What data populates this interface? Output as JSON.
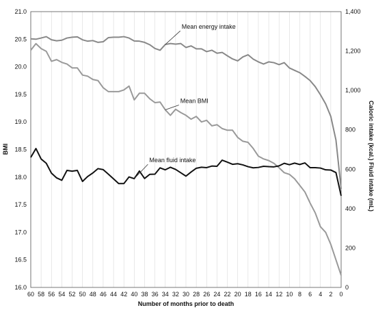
{
  "chart_data": {
    "type": "line",
    "xlabel": "Number of months prior to death",
    "ylabel_left": "BMI",
    "ylabel_right": "Caloric intake (kcal.) Fluid intake (mL)",
    "x_ticks": [
      60,
      58,
      56,
      54,
      52,
      50,
      48,
      46,
      44,
      42,
      40,
      38,
      36,
      34,
      32,
      30,
      28,
      26,
      24,
      22,
      20,
      18,
      16,
      14,
      12,
      10,
      8,
      6,
      4,
      2,
      0
    ],
    "x_range": [
      60,
      0
    ],
    "y_left_ticks": [
      "16.0",
      "16.5",
      "17.0",
      "17.5",
      "18.0",
      "18.5",
      "19.0",
      "19.5",
      "20.0",
      "20.5",
      "21.0"
    ],
    "y_left_range": [
      16.0,
      21.0
    ],
    "y_right_ticks": [
      "0",
      "200",
      "400",
      "600",
      "800",
      "1,000",
      "1,200",
      "1,400"
    ],
    "y_right_range": [
      0,
      1400
    ],
    "grid": "vertical",
    "series": [
      {
        "name": "Mean energy intake",
        "axis": "right",
        "color": "#888888",
        "x": [
          60,
          59,
          58,
          57,
          56,
          55,
          54,
          53,
          52,
          51,
          50,
          49,
          48,
          47,
          46,
          45,
          44,
          43,
          42,
          41,
          40,
          39,
          38,
          37,
          36,
          35,
          34,
          33,
          32,
          31,
          30,
          29,
          28,
          27,
          26,
          25,
          24,
          23,
          22,
          21,
          20,
          19,
          18,
          17,
          16,
          15,
          14,
          13,
          12,
          11,
          10,
          9,
          8,
          7,
          6,
          5,
          4,
          3,
          2,
          1,
          0
        ],
        "y": [
          1262,
          1260,
          1266,
          1273,
          1257,
          1252,
          1255,
          1266,
          1270,
          1272,
          1257,
          1250,
          1253,
          1244,
          1247,
          1268,
          1270,
          1270,
          1273,
          1266,
          1251,
          1250,
          1244,
          1232,
          1213,
          1204,
          1233,
          1238,
          1235,
          1238,
          1218,
          1226,
          1211,
          1211,
          1197,
          1204,
          1189,
          1193,
          1176,
          1160,
          1150,
          1170,
          1181,
          1159,
          1145,
          1134,
          1145,
          1141,
          1131,
          1141,
          1114,
          1102,
          1090,
          1071,
          1050,
          1019,
          978,
          932,
          868,
          748,
          500
        ]
      },
      {
        "name": "Mean BMI",
        "axis": "left",
        "color": "#999999",
        "x": [
          60,
          59,
          58,
          57,
          56,
          55,
          54,
          53,
          52,
          51,
          50,
          49,
          48,
          47,
          46,
          45,
          44,
          43,
          42,
          41,
          40,
          39,
          38,
          37,
          36,
          35,
          34,
          33,
          32,
          31,
          30,
          29,
          28,
          27,
          26,
          25,
          24,
          23,
          22,
          21,
          20,
          19,
          18,
          17,
          16,
          15,
          14,
          13,
          12,
          11,
          10,
          9,
          8,
          7,
          6,
          5,
          4,
          3,
          2,
          1,
          0
        ],
        "y": [
          20.3,
          20.42,
          20.33,
          20.28,
          20.1,
          20.13,
          20.08,
          20.05,
          19.98,
          19.98,
          19.85,
          19.83,
          19.77,
          19.75,
          19.62,
          19.55,
          19.55,
          19.55,
          19.58,
          19.65,
          19.4,
          19.52,
          19.52,
          19.42,
          19.35,
          19.36,
          19.22,
          19.12,
          19.23,
          19.17,
          19.12,
          19.05,
          19.1,
          19.0,
          19.03,
          18.93,
          18.95,
          18.88,
          18.85,
          18.85,
          18.72,
          18.65,
          18.63,
          18.52,
          18.38,
          18.33,
          18.3,
          18.25,
          18.17,
          18.08,
          18.05,
          17.97,
          17.85,
          17.73,
          17.53,
          17.35,
          17.1,
          17.0,
          16.78,
          16.5,
          16.22
        ]
      },
      {
        "name": "Mean fluid intake",
        "axis": "right",
        "color": "#111111",
        "x": [
          60,
          59,
          58,
          57,
          56,
          55,
          54,
          53,
          52,
          51,
          50,
          49,
          48,
          47,
          46,
          45,
          44,
          43,
          42,
          41,
          40,
          39,
          38,
          37,
          36,
          35,
          34,
          33,
          32,
          31,
          30,
          29,
          28,
          27,
          26,
          25,
          24,
          23,
          22,
          21,
          20,
          19,
          18,
          17,
          16,
          15,
          14,
          13,
          12,
          11,
          10,
          9,
          8,
          7,
          6,
          5,
          4,
          3,
          2,
          1,
          0
        ],
        "y": [
          660,
          705,
          652,
          630,
          580,
          556,
          544,
          594,
          590,
          594,
          538,
          563,
          581,
          603,
          598,
          575,
          551,
          527,
          527,
          561,
          552,
          591,
          553,
          574,
          575,
          607,
          597,
          610,
          599,
          582,
          565,
          586,
          605,
          610,
          608,
          616,
          615,
          646,
          636,
          625,
          628,
          622,
          613,
          607,
          609,
          615,
          613,
          612,
          617,
          630,
          623,
          631,
          624,
          632,
          608,
          608,
          606,
          597,
          596,
          583,
          465
        ]
      }
    ],
    "annotations": [
      {
        "text": "Mean energy intake",
        "series": "Mean energy intake",
        "at_x": 34
      },
      {
        "text": "Mean BMI",
        "series": "Mean BMI",
        "at_x": 34
      },
      {
        "text": "Mean fluid intake",
        "series": "Mean fluid intake",
        "at_x": 40
      }
    ]
  }
}
